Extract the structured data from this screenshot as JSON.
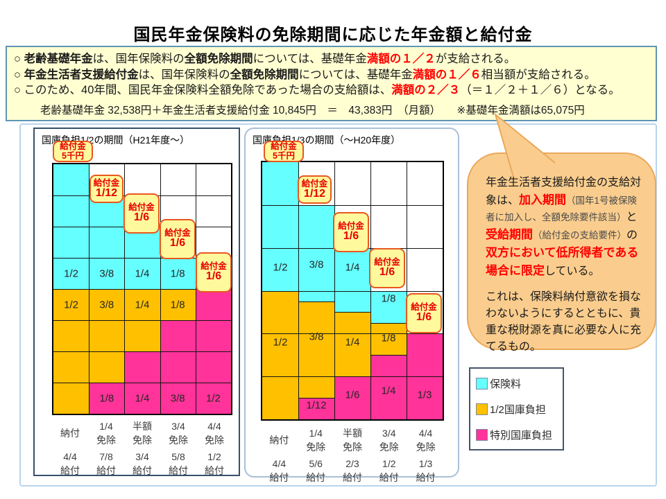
{
  "page_title": "国民年金保険料の免除期間に応じた年金額と給付金",
  "colors": {
    "cyan": "#66FFFF",
    "orange": "#FFC000",
    "pink": "#FF3399",
    "callout_bg": "#FFF99D",
    "callout_border": "#E8571D",
    "bubble_bg": "#FACD8E",
    "info_bg": "#FFFFD2"
  },
  "info_box": {
    "bullets": [
      [
        {
          "t": "○ ",
          "s": "n"
        },
        {
          "t": "老齢基礎年金",
          "s": "b"
        },
        {
          "t": "は、国年保険料の",
          "s": "n"
        },
        {
          "t": "全額免除期間",
          "s": "b"
        },
        {
          "t": "については、基礎年金",
          "s": "n"
        },
        {
          "t": "満額の１／２",
          "s": "rb"
        },
        {
          "t": "が支給される。",
          "s": "n"
        }
      ],
      [
        {
          "t": "○ ",
          "s": "n"
        },
        {
          "t": "年金生活者支援給付金",
          "s": "b"
        },
        {
          "t": "は、国年保険料の",
          "s": "n"
        },
        {
          "t": "全額免除期間",
          "s": "b"
        },
        {
          "t": "については、基礎年金",
          "s": "n"
        },
        {
          "t": "満額の１／６",
          "s": "rb"
        },
        {
          "t": "相当額が支給される。",
          "s": "n"
        }
      ],
      [
        {
          "t": "○ このため、40年間、国民年金保険料全額免除であった場合の支給額は、",
          "s": "n"
        },
        {
          "t": "満額の２／３",
          "s": "rb"
        },
        {
          "t": "（＝１／２＋１／６）となる。",
          "s": "n"
        }
      ]
    ],
    "formula": "老齢基礎年金 32,538円＋年金生活者支援給付金 10,845円　＝　43,383円　（月額）　　※基礎年金満額は65,075円"
  },
  "panels": [
    {
      "title": "国庫負担1/2の期間（H21年度～）",
      "grid_rows": 8,
      "columns": [
        {
          "exempt": [
            "納付"
          ],
          "benefit": [
            "4/4",
            "給付"
          ],
          "segments": [
            {
              "color": "cyan",
              "frac": 0.5,
              "label": "1/2",
              "label_at": 0.4375
            },
            {
              "color": "orange",
              "frac": 0.5,
              "label": "1/2",
              "label_at": 0.5625
            }
          ]
        },
        {
          "exempt": [
            "1/4",
            "免除"
          ],
          "benefit": [
            "7/8",
            "給付"
          ],
          "segments": [
            {
              "color": "white",
              "frac": 0.125
            },
            {
              "color": "cyan",
              "frac": 0.375,
              "label": "3/8",
              "label_at": 0.4375
            },
            {
              "color": "orange",
              "frac": 0.375,
              "label": "3/8",
              "label_at": 0.5625
            },
            {
              "color": "pink",
              "frac": 0.125,
              "label": "1/8",
              "label_at": 0.9375
            }
          ]
        },
        {
          "exempt": [
            "半額",
            "免除"
          ],
          "benefit": [
            "3/4",
            "給付"
          ],
          "segments": [
            {
              "color": "white",
              "frac": 0.25
            },
            {
              "color": "cyan",
              "frac": 0.25,
              "label": "1/4",
              "label_at": 0.4375
            },
            {
              "color": "orange",
              "frac": 0.25,
              "label": "1/4",
              "label_at": 0.5625
            },
            {
              "color": "pink",
              "frac": 0.25,
              "label": "1/4",
              "label_at": 0.9375
            }
          ]
        },
        {
          "exempt": [
            "3/4",
            "免除"
          ],
          "benefit": [
            "5/8",
            "給付"
          ],
          "segments": [
            {
              "color": "white",
              "frac": 0.375
            },
            {
              "color": "cyan",
              "frac": 0.125,
              "label": "1/8",
              "label_at": 0.4375
            },
            {
              "color": "orange",
              "frac": 0.125,
              "label": "1/8",
              "label_at": 0.5625
            },
            {
              "color": "pink",
              "frac": 0.375,
              "label": "3/8",
              "label_at": 0.9375
            }
          ]
        },
        {
          "exempt": [
            "4/4",
            "免除"
          ],
          "benefit": [
            "1/2",
            "給付"
          ],
          "segments": [
            {
              "color": "white",
              "frac": 0.5
            },
            {
              "color": "pink",
              "frac": 0.5,
              "label": "1/2",
              "label_at": 0.9375
            }
          ]
        }
      ],
      "callouts": [
        {
          "lines": [
            "給付金",
            "5千円"
          ]
        },
        {
          "lines": [
            "給付金",
            "1/12"
          ]
        },
        {
          "lines": [
            "給付金",
            "1/6"
          ]
        },
        {
          "lines": [
            "給付金",
            "1/6"
          ]
        },
        {
          "lines": [
            "給付金",
            "1/6"
          ]
        }
      ]
    },
    {
      "title": "国庫負担1/3の期間（～H20年度）",
      "grid_rows": 6,
      "columns": [
        {
          "exempt": [
            "納付"
          ],
          "benefit": [
            "4/4",
            "給付"
          ],
          "segments": [
            {
              "color": "cyan",
              "frac": 0.5,
              "label": "1/2",
              "label_at": 0.41
            },
            {
              "color": "orange",
              "frac": 0.5,
              "label": "1/2",
              "label_at": 0.7
            }
          ]
        },
        {
          "exempt": [
            "1/4",
            "免除"
          ],
          "benefit": [
            "5/6",
            "給付"
          ],
          "segments": [
            {
              "color": "white",
              "frac": 0.1667
            },
            {
              "color": "cyan",
              "frac": 0.375,
              "label": "3/8",
              "label_at": 0.4
            },
            {
              "color": "orange",
              "frac": 0.375,
              "label": "3/8",
              "label_at": 0.68
            },
            {
              "color": "pink",
              "frac": 0.0833,
              "label": "1/12",
              "label_at": 0.945
            }
          ]
        },
        {
          "exempt": [
            "半額",
            "免除"
          ],
          "benefit": [
            "2/3",
            "給付"
          ],
          "segments": [
            {
              "color": "white",
              "frac": 0.3333
            },
            {
              "color": "cyan",
              "frac": 0.25,
              "label": "1/4",
              "label_at": 0.41
            },
            {
              "color": "orange",
              "frac": 0.25,
              "label": "1/4",
              "label_at": 0.7
            },
            {
              "color": "pink",
              "frac": 0.1667,
              "label": "1/6",
              "label_at": 0.905
            }
          ]
        },
        {
          "exempt": [
            "3/4",
            "免除"
          ],
          "benefit": [
            "1/2",
            "給付"
          ],
          "segments": [
            {
              "color": "white",
              "frac": 0.5
            },
            {
              "color": "cyan",
              "frac": 0.125,
              "label": "1/8",
              "label_at": 0.53
            },
            {
              "color": "orange",
              "frac": 0.125,
              "label": "1/8",
              "label_at": 0.685
            },
            {
              "color": "pink",
              "frac": 0.25,
              "label": "1/4",
              "label_at": 0.89
            }
          ]
        },
        {
          "exempt": [
            "4/4",
            "免除"
          ],
          "benefit": [
            "1/3",
            "給付"
          ],
          "segments": [
            {
              "color": "white",
              "frac": 0.6667
            },
            {
              "color": "pink",
              "frac": 0.3333,
              "label": "1/3",
              "label_at": 0.905
            }
          ]
        }
      ],
      "callouts": [
        {
          "lines": [
            "給付金",
            "5千円"
          ]
        },
        {
          "lines": [
            "給付金",
            "1/12"
          ]
        },
        {
          "lines": [
            "給付金",
            "1/6"
          ]
        },
        {
          "lines": [
            "給付金",
            "1/6"
          ]
        },
        {
          "lines": [
            "給付金",
            "1/6"
          ]
        }
      ]
    }
  ],
  "bubble": {
    "paragraphs": [
      [
        {
          "t": "年金生活者支援給付金の支給対象は、",
          "s": "n"
        },
        {
          "t": "加入期間",
          "s": "rb"
        },
        {
          "t": "（国年1号被保険者に加入し、全額免除要件該当）",
          "s": "sm"
        },
        {
          "t": "と",
          "s": "n"
        },
        {
          "t": "受給期間",
          "s": "rb"
        },
        {
          "t": "（給付金の支給要件）",
          "s": "sm"
        },
        {
          "t": "の",
          "s": "n"
        },
        {
          "t": "双方において低所得者である場合に限定",
          "s": "rb"
        },
        {
          "t": "している。",
          "s": "n"
        }
      ],
      [
        {
          "t": "これは、保険料納付意欲を損なわないようにするとともに、貴重な税財源を真に必要な人に充てるもの。",
          "s": "n"
        }
      ]
    ]
  },
  "legend": {
    "items": [
      {
        "color": "cyan",
        "label": "保険料"
      },
      {
        "color": "orange",
        "label": "1/2国庫負担"
      },
      {
        "color": "pink",
        "label": "特別国庫負担"
      }
    ]
  }
}
